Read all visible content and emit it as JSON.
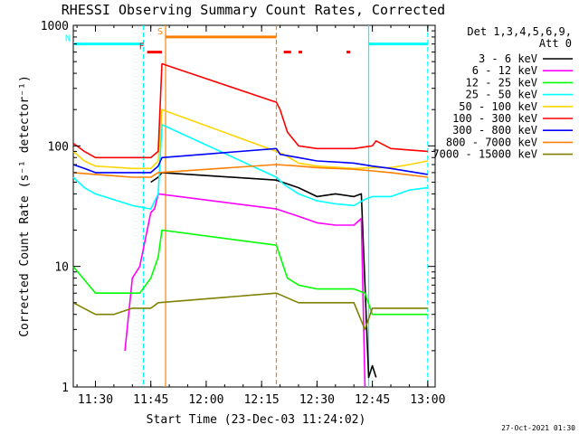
{
  "chart_data": {
    "type": "line",
    "title": "RHESSI Observing Summary Count Rates, Corrected",
    "xlabel": "Start Time (23-Dec-03 11:24:02)",
    "ylabel": "Corrected Count Rate (s⁻¹ detector⁻¹)",
    "yscale": "log",
    "ylim": [
      1,
      1000
    ],
    "xlim": [
      "11:24",
      "13:02"
    ],
    "x_ticks": [
      "11:30",
      "11:45",
      "12:00",
      "12:15",
      "12:30",
      "12:45",
      "13:00"
    ],
    "y_ticks": [
      "1",
      "10",
      "100",
      "1000"
    ],
    "legend_header": [
      "Det 1,3,4,5,6,9,",
      "Att 0"
    ],
    "legend_position": "right",
    "date_stamp": "27-Oct-2021 01:30",
    "series": [
      {
        "name": "3 - 6 keV",
        "color": "#000000",
        "x": [
          "11:24",
          "11:40",
          "11:45",
          "11:47",
          "11:48",
          "12:19",
          "12:25",
          "12:30",
          "12:35",
          "12:40",
          "12:42",
          "12:44",
          "12:45",
          "12:46"
        ],
        "values": [
          null,
          null,
          50,
          55,
          60,
          52,
          45,
          38,
          40,
          38,
          40,
          1.2,
          1.5,
          1.2
        ]
      },
      {
        "name": "6 - 12 keV",
        "color": "#ff00ff",
        "x": [
          "11:38",
          "11:40",
          "11:42",
          "11:45",
          "11:46",
          "11:47",
          "12:19",
          "12:25",
          "12:30",
          "12:35",
          "12:40",
          "12:42",
          "12:43"
        ],
        "values": [
          2,
          8,
          10,
          28,
          30,
          40,
          30,
          26,
          23,
          22,
          22,
          25,
          1.0
        ]
      },
      {
        "name": "12 - 25 keV",
        "color": "#00ff00",
        "x": [
          "11:24",
          "11:30",
          "11:38",
          "11:42",
          "11:45",
          "11:47",
          "11:48",
          "12:19",
          "12:22",
          "12:25",
          "12:30",
          "12:40",
          "12:43",
          "12:45",
          "13:00"
        ],
        "values": [
          10,
          6,
          6,
          6,
          8,
          12,
          20,
          15,
          8,
          7,
          6.5,
          6.5,
          6,
          4,
          4
        ]
      },
      {
        "name": "25 - 50 keV",
        "color": "#00ffff",
        "x": [
          "11:24",
          "11:27",
          "11:30",
          "11:40",
          "11:45",
          "11:47",
          "11:48",
          "12:19",
          "12:21",
          "12:25",
          "12:30",
          "12:35",
          "12:40",
          "12:43",
          "12:45",
          "12:50",
          "12:55",
          "13:00"
        ],
        "values": [
          55,
          45,
          40,
          32,
          30,
          40,
          150,
          55,
          48,
          40,
          35,
          33,
          32,
          36,
          38,
          38,
          43,
          45
        ]
      },
      {
        "name": "50 - 100 keV",
        "color": "#ffd400",
        "x": [
          "11:24",
          "11:27",
          "11:30",
          "11:40",
          "11:45",
          "11:47",
          "11:48",
          "12:19",
          "12:21",
          "12:25",
          "12:30",
          "12:40",
          "12:45",
          "12:50",
          "12:55",
          "13:00"
        ],
        "values": [
          90,
          75,
          68,
          65,
          65,
          75,
          200,
          90,
          85,
          72,
          68,
          65,
          66,
          66,
          70,
          75
        ]
      },
      {
        "name": "100 - 300 keV",
        "color": "#ff0000",
        "x": [
          "11:24",
          "11:27",
          "11:30",
          "11:40",
          "11:45",
          "11:47",
          "11:48",
          "12:19",
          "12:20",
          "12:22",
          "12:25",
          "12:30",
          "12:40",
          "12:45",
          "12:46",
          "12:50",
          "13:00"
        ],
        "values": [
          105,
          90,
          80,
          80,
          80,
          90,
          480,
          230,
          200,
          130,
          100,
          95,
          95,
          100,
          110,
          95,
          90
        ]
      },
      {
        "name": "300 - 800 keV",
        "color": "#0000ff",
        "x": [
          "11:24",
          "11:27",
          "11:30",
          "11:40",
          "11:45",
          "11:47",
          "11:48",
          "12:19",
          "12:20",
          "12:25",
          "12:30",
          "12:40",
          "12:45",
          "12:50",
          "13:00"
        ],
        "values": [
          70,
          65,
          60,
          60,
          60,
          68,
          80,
          95,
          85,
          80,
          75,
          72,
          68,
          65,
          58
        ]
      },
      {
        "name": "800 - 7000 keV",
        "color": "#ff8000",
        "x": [
          "11:24",
          "11:30",
          "11:40",
          "11:45",
          "11:47",
          "12:19",
          "12:25",
          "12:30",
          "12:40",
          "12:45",
          "12:50",
          "13:00"
        ],
        "values": [
          60,
          58,
          55,
          55,
          60,
          70,
          68,
          66,
          64,
          62,
          60,
          55
        ]
      },
      {
        "name": "7000 - 15000 keV",
        "color": "#808000",
        "x": [
          "11:24",
          "11:30",
          "11:35",
          "11:40",
          "11:45",
          "11:47",
          "12:19",
          "12:25",
          "12:30",
          "12:40",
          "12:43",
          "12:45",
          "12:50",
          "13:00"
        ],
        "values": [
          5,
          4,
          4,
          4.5,
          4.5,
          5,
          6,
          5,
          5,
          5,
          3,
          4.5,
          4.5,
          4.5
        ]
      }
    ],
    "flags": [
      {
        "label": "N",
        "color": "#00ffff",
        "type": "night",
        "spans": [
          [
            "11:24",
            "11:43"
          ],
          [
            "12:44",
            "13:00"
          ]
        ],
        "level": 700
      },
      {
        "label": "F",
        "color": "#ff0000",
        "type": "flare",
        "spans": [
          [
            "11:44",
            "11:48"
          ],
          [
            "12:21",
            "12:23"
          ],
          [
            "12:25",
            "12:26"
          ],
          [
            "12:38",
            "12:39"
          ]
        ],
        "level": 600
      },
      {
        "label": "S",
        "color": "#ff8000",
        "type": "saa",
        "spans": [
          [
            "11:49",
            "12:19"
          ]
        ],
        "level": 800
      }
    ],
    "vlines": [
      {
        "t": "11:43",
        "color": "#00ffff",
        "style": "dashed"
      },
      {
        "t": "11:49",
        "color": "#ff8000",
        "style": "solid"
      },
      {
        "t": "12:19",
        "color": "#ff8000",
        "style": "dashed"
      },
      {
        "t": "12:44",
        "color": "#00ffff",
        "style": "solid"
      },
      {
        "t": "13:00",
        "color": "#00ffff",
        "style": "dashed"
      }
    ]
  }
}
